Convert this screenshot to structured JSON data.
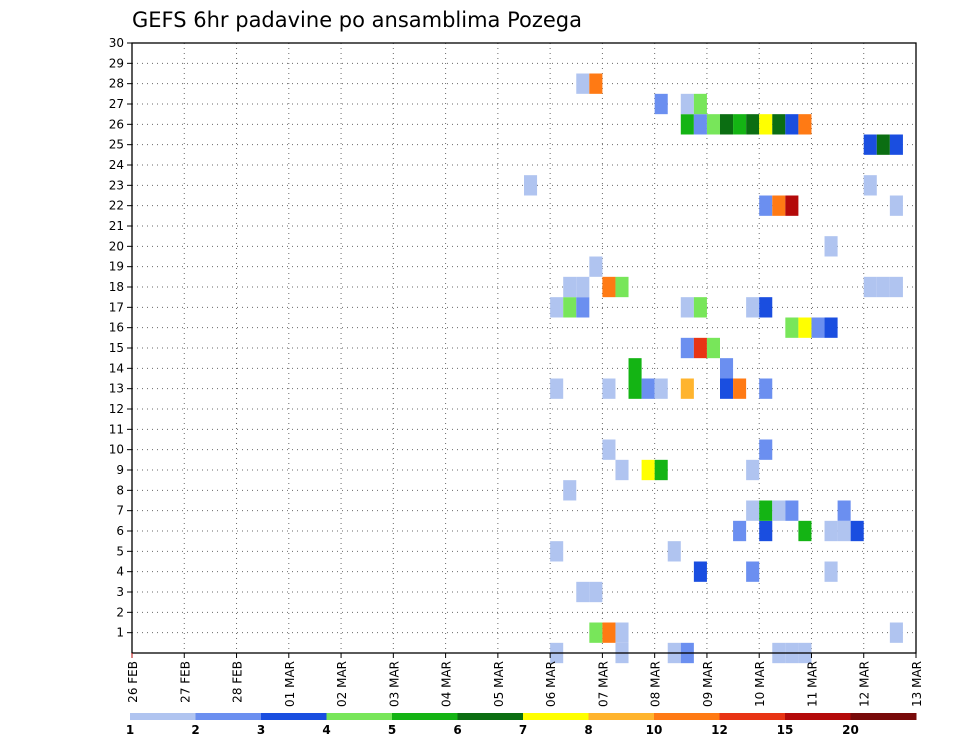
{
  "chart_data": {
    "type": "heatmap",
    "title": "GEFS 6hr padavine po ansamblima Pozega",
    "xlabel": "",
    "ylabel": "",
    "x_unit": "days since 26 FEB (6-hour steps)",
    "xlim": [
      0,
      15
    ],
    "ylim": [
      0,
      30
    ],
    "x_tick_values": [
      0,
      1,
      2,
      3,
      4,
      5,
      6,
      7,
      8,
      9,
      10,
      11,
      12,
      13,
      14,
      15
    ],
    "x_tick_labels": [
      "26 FEB",
      "27 FEB",
      "28 FEB",
      "01 MAR",
      "02 MAR",
      "03 MAR",
      "04 MAR",
      "05 MAR",
      "06 MAR",
      "07 MAR",
      "08 MAR",
      "09 MAR",
      "10 MAR",
      "11 MAR",
      "12 MAR",
      "13 MAR"
    ],
    "y_tick_values": [
      1,
      2,
      3,
      4,
      5,
      6,
      7,
      8,
      9,
      10,
      11,
      12,
      13,
      14,
      15,
      16,
      17,
      18,
      19,
      20,
      21,
      22,
      23,
      24,
      25,
      26,
      27,
      28,
      29,
      30
    ],
    "y_tick_labels": [
      "1",
      "2",
      "3",
      "4",
      "5",
      "6",
      "7",
      "8",
      "9",
      "10",
      "11",
      "12",
      "13",
      "14",
      "15",
      "16",
      "17",
      "18",
      "19",
      "20",
      "21",
      "22",
      "23",
      "24",
      "25",
      "26",
      "27",
      "28",
      "29",
      "30"
    ],
    "grid": true,
    "colorbar": {
      "colors": [
        "#b0c4f0",
        "#6b8ff0",
        "#1a4ee0",
        "#78e65a",
        "#14b414",
        "#0b6e12",
        "#ffff00",
        "#ffb42e",
        "#ff7a14",
        "#e83414",
        "#b40a0a",
        "#780a0a"
      ],
      "labels": [
        "1",
        "2",
        "3",
        "4",
        "5",
        "6",
        "7",
        "8",
        "10",
        "12",
        "15",
        "20"
      ]
    },
    "cell_width_days": 0.25,
    "cell_height_members": 1,
    "cells": [
      {
        "x": 8.0,
        "y": 0,
        "c": 0
      },
      {
        "x": 9.25,
        "y": 0,
        "c": 0
      },
      {
        "x": 10.25,
        "y": 0,
        "c": 0
      },
      {
        "x": 10.5,
        "y": 0,
        "c": 1
      },
      {
        "x": 12.25,
        "y": 0,
        "c": 0
      },
      {
        "x": 12.5,
        "y": 0,
        "c": 0
      },
      {
        "x": 12.75,
        "y": 0,
        "c": 0
      },
      {
        "x": 8.75,
        "y": 1,
        "c": 3
      },
      {
        "x": 9.0,
        "y": 1,
        "c": 8
      },
      {
        "x": 9.25,
        "y": 1,
        "c": 0
      },
      {
        "x": 14.5,
        "y": 1,
        "c": 0
      },
      {
        "x": 8.5,
        "y": 3,
        "c": 0
      },
      {
        "x": 8.75,
        "y": 3,
        "c": 0
      },
      {
        "x": 10.75,
        "y": 4,
        "c": 2
      },
      {
        "x": 11.75,
        "y": 4,
        "c": 1
      },
      {
        "x": 13.25,
        "y": 4,
        "c": 0
      },
      {
        "x": 8.0,
        "y": 5,
        "c": 0
      },
      {
        "x": 10.25,
        "y": 5,
        "c": 0
      },
      {
        "x": 11.5,
        "y": 6,
        "c": 1
      },
      {
        "x": 12.0,
        "y": 6,
        "c": 2
      },
      {
        "x": 12.75,
        "y": 6,
        "c": 4
      },
      {
        "x": 13.25,
        "y": 6,
        "c": 0
      },
      {
        "x": 13.5,
        "y": 6,
        "c": 0
      },
      {
        "x": 13.75,
        "y": 6,
        "c": 2
      },
      {
        "x": 11.75,
        "y": 7,
        "c": 0
      },
      {
        "x": 12.0,
        "y": 7,
        "c": 4
      },
      {
        "x": 12.25,
        "y": 7,
        "c": 0
      },
      {
        "x": 12.5,
        "y": 7,
        "c": 1
      },
      {
        "x": 13.5,
        "y": 7,
        "c": 1
      },
      {
        "x": 8.25,
        "y": 8,
        "c": 0
      },
      {
        "x": 9.25,
        "y": 9,
        "c": 0
      },
      {
        "x": 9.75,
        "y": 9,
        "c": 6
      },
      {
        "x": 10.0,
        "y": 9,
        "c": 4
      },
      {
        "x": 11.75,
        "y": 9,
        "c": 0
      },
      {
        "x": 9.0,
        "y": 10,
        "c": 0
      },
      {
        "x": 12.0,
        "y": 10,
        "c": 1
      },
      {
        "x": 8.0,
        "y": 13,
        "c": 0
      },
      {
        "x": 9.0,
        "y": 13,
        "c": 0
      },
      {
        "x": 9.5,
        "y": 13,
        "c": 4
      },
      {
        "x": 9.75,
        "y": 13,
        "c": 1
      },
      {
        "x": 10.0,
        "y": 13,
        "c": 0
      },
      {
        "x": 10.5,
        "y": 13,
        "c": 7
      },
      {
        "x": 11.25,
        "y": 13,
        "c": 2
      },
      {
        "x": 11.5,
        "y": 13,
        "c": 8
      },
      {
        "x": 12.0,
        "y": 13,
        "c": 1
      },
      {
        "x": 9.5,
        "y": 14,
        "c": 4
      },
      {
        "x": 11.25,
        "y": 14,
        "c": 1
      },
      {
        "x": 10.5,
        "y": 15,
        "c": 1
      },
      {
        "x": 10.75,
        "y": 15,
        "c": 9
      },
      {
        "x": 11.0,
        "y": 15,
        "c": 3
      },
      {
        "x": 12.5,
        "y": 16,
        "c": 3
      },
      {
        "x": 12.75,
        "y": 16,
        "c": 6
      },
      {
        "x": 13.0,
        "y": 16,
        "c": 1
      },
      {
        "x": 13.25,
        "y": 16,
        "c": 2
      },
      {
        "x": 8.0,
        "y": 17,
        "c": 0
      },
      {
        "x": 8.25,
        "y": 17,
        "c": 3
      },
      {
        "x": 8.5,
        "y": 17,
        "c": 1
      },
      {
        "x": 10.5,
        "y": 17,
        "c": 0
      },
      {
        "x": 10.75,
        "y": 17,
        "c": 3
      },
      {
        "x": 11.75,
        "y": 17,
        "c": 0
      },
      {
        "x": 12.0,
        "y": 17,
        "c": 2
      },
      {
        "x": 8.25,
        "y": 18,
        "c": 0
      },
      {
        "x": 8.5,
        "y": 18,
        "c": 0
      },
      {
        "x": 9.0,
        "y": 18,
        "c": 8
      },
      {
        "x": 9.25,
        "y": 18,
        "c": 3
      },
      {
        "x": 14.0,
        "y": 18,
        "c": 0
      },
      {
        "x": 14.25,
        "y": 18,
        "c": 0
      },
      {
        "x": 14.5,
        "y": 18,
        "c": 0
      },
      {
        "x": 8.75,
        "y": 19,
        "c": 0
      },
      {
        "x": 13.25,
        "y": 20,
        "c": 0
      },
      {
        "x": 12.0,
        "y": 22,
        "c": 1
      },
      {
        "x": 12.25,
        "y": 22,
        "c": 8
      },
      {
        "x": 12.5,
        "y": 22,
        "c": 10
      },
      {
        "x": 14.5,
        "y": 22,
        "c": 0
      },
      {
        "x": 7.5,
        "y": 23,
        "c": 0
      },
      {
        "x": 14.0,
        "y": 23,
        "c": 0
      },
      {
        "x": 14.0,
        "y": 25,
        "c": 2
      },
      {
        "x": 14.25,
        "y": 25,
        "c": 5
      },
      {
        "x": 14.5,
        "y": 25,
        "c": 2
      },
      {
        "x": 10.5,
        "y": 26,
        "c": 4
      },
      {
        "x": 10.75,
        "y": 26,
        "c": 1
      },
      {
        "x": 11.0,
        "y": 26,
        "c": 3
      },
      {
        "x": 11.25,
        "y": 26,
        "c": 5
      },
      {
        "x": 11.5,
        "y": 26,
        "c": 4
      },
      {
        "x": 11.75,
        "y": 26,
        "c": 5
      },
      {
        "x": 12.0,
        "y": 26,
        "c": 6
      },
      {
        "x": 12.25,
        "y": 26,
        "c": 5
      },
      {
        "x": 12.5,
        "y": 26,
        "c": 2
      },
      {
        "x": 12.75,
        "y": 26,
        "c": 8
      },
      {
        "x": 10.0,
        "y": 27,
        "c": 1
      },
      {
        "x": 10.5,
        "y": 27,
        "c": 0
      },
      {
        "x": 10.75,
        "y": 27,
        "c": 3
      },
      {
        "x": 8.5,
        "y": 28,
        "c": 0
      },
      {
        "x": 8.75,
        "y": 28,
        "c": 8
      }
    ]
  }
}
